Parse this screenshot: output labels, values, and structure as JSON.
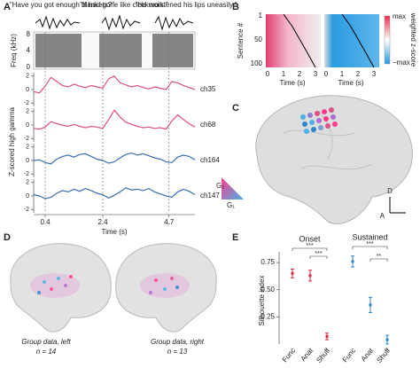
{
  "panels": {
    "A": {
      "letter": "A",
      "quotes": [
        "\"Have you got enough blankets?\"",
        "\"If had gone like clockwork.\"",
        "\"He moistened his lips uneasily.\""
      ],
      "freq_label": "Freq (kHz)",
      "freq_ticks": [
        "0",
        "4",
        "8"
      ]
    },
    "B": {
      "letter": "B",
      "ylabel": "Sentence #",
      "yticks": [
        "1",
        "50",
        "100"
      ],
      "xticks": [
        "0",
        "1",
        "2",
        "3"
      ],
      "xlabel": "Time (s)",
      "cbar_max": "max",
      "cbar_min": "−max",
      "cbar_label": "weighted z-score"
    },
    "C": {
      "letter": "C",
      "g1": "G₁",
      "g2": "G₂",
      "dorsal": "D",
      "anterior": "A"
    },
    "D": {
      "letter": "D",
      "left_caption": "Group data, left",
      "left_n": "n = 14",
      "right_caption": "Group data, right",
      "right_n": "n = 13"
    },
    "E": {
      "letter": "E"
    }
  },
  "chart_data": [
    {
      "type": "line",
      "label": "ch35",
      "color": "#e0508a",
      "xlim": [
        0,
        5.6
      ],
      "ylim": [
        -2.5,
        2.5
      ],
      "yticks": [
        -2,
        0,
        2
      ],
      "x": [
        0,
        0.2,
        0.4,
        0.6,
        0.8,
        1,
        1.2,
        1.4,
        1.6,
        1.8,
        2,
        2.2,
        2.4,
        2.6,
        2.8,
        3,
        3.2,
        3.4,
        3.6,
        3.8,
        4,
        4.2,
        4.4,
        4.6,
        4.8,
        5,
        5.2,
        5.4,
        5.6
      ],
      "values": [
        -0.3,
        -0.5,
        0.5,
        1.8,
        1.2,
        0.6,
        0.4,
        0.8,
        0.5,
        0.3,
        0.6,
        0.4,
        0.2,
        1.6,
        2.0,
        1.0,
        0.7,
        0.4,
        0.6,
        0.3,
        0.1,
        0.4,
        0.2,
        0.0,
        1.2,
        1.0,
        0.6,
        0.3,
        0.0
      ]
    },
    {
      "type": "line",
      "label": "ch68",
      "color": "#e0508a",
      "ylabel": "Z-scored high gamma",
      "xlim": [
        0,
        5.6
      ],
      "ylim": [
        -2.5,
        2.5
      ],
      "yticks": [
        -2,
        0,
        2
      ],
      "x": [
        0,
        0.2,
        0.4,
        0.6,
        0.8,
        1,
        1.2,
        1.4,
        1.6,
        1.8,
        2,
        2.2,
        2.4,
        2.6,
        2.8,
        3,
        3.2,
        3.4,
        3.6,
        3.8,
        4,
        4.2,
        4.4,
        4.6,
        4.8,
        5,
        5.2,
        5.4,
        5.6
      ],
      "values": [
        -0.5,
        -0.6,
        -0.3,
        0.5,
        0.2,
        0.0,
        -0.2,
        0.1,
        -0.2,
        -0.4,
        -0.2,
        -0.3,
        -0.5,
        0.8,
        2.2,
        1.2,
        0.4,
        0.1,
        -0.2,
        -0.4,
        -0.3,
        -0.5,
        -0.4,
        -0.6,
        0.6,
        1.5,
        0.8,
        0.2,
        -0.3
      ]
    },
    {
      "type": "line",
      "label": "ch164",
      "color": "#3a6fb0",
      "xlim": [
        0,
        5.6
      ],
      "ylim": [
        -2.5,
        2.5
      ],
      "yticks": [
        -2,
        0,
        2
      ],
      "x": [
        0,
        0.2,
        0.4,
        0.6,
        0.8,
        1,
        1.2,
        1.4,
        1.6,
        1.8,
        2,
        2.2,
        2.4,
        2.6,
        2.8,
        3,
        3.2,
        3.4,
        3.6,
        3.8,
        4,
        4.2,
        4.4,
        4.6,
        4.8,
        5,
        5.2,
        5.4,
        5.6
      ],
      "values": [
        0.0,
        0.1,
        -0.3,
        -0.5,
        0.2,
        0.6,
        0.8,
        0.5,
        0.9,
        1.0,
        0.6,
        0.2,
        0.0,
        -0.4,
        -0.2,
        0.4,
        0.9,
        1.1,
        0.8,
        1.0,
        0.7,
        0.4,
        0.2,
        -0.2,
        -0.3,
        0.5,
        0.8,
        0.6,
        0.1
      ]
    },
    {
      "type": "line",
      "label": "ch147",
      "color": "#3a6fb0",
      "xlabel": "Time (s)",
      "xlim": [
        0,
        5.6
      ],
      "ylim": [
        -2.5,
        2.5
      ],
      "yticks": [
        -2,
        0,
        2
      ],
      "xticks": [
        0.4,
        2.4,
        4.7
      ],
      "x": [
        0,
        0.2,
        0.4,
        0.6,
        0.8,
        1,
        1.2,
        1.4,
        1.6,
        1.8,
        2,
        2.2,
        2.4,
        2.6,
        2.8,
        3,
        3.2,
        3.4,
        3.6,
        3.8,
        4,
        4.2,
        4.4,
        4.6,
        4.8,
        5,
        5.2,
        5.4,
        5.6
      ],
      "values": [
        0.2,
        0.0,
        -0.4,
        -0.2,
        0.4,
        0.8,
        0.6,
        1.0,
        0.7,
        1.1,
        0.8,
        0.4,
        0.2,
        -0.3,
        0.1,
        0.6,
        1.2,
        0.9,
        1.0,
        0.8,
        1.1,
        0.6,
        0.3,
        0.0,
        -0.2,
        0.6,
        1.0,
        0.7,
        0.2
      ]
    },
    {
      "type": "errorbar",
      "ylabel": "Silhouette index",
      "ylim": [
        0,
        0.8
      ],
      "yticks": [
        {
          "value": 0.25,
          "label": "0.25"
        },
        {
          "value": 0.5,
          "label": "0.50"
        },
        {
          "value": 0.75,
          "label": "0.75"
        }
      ],
      "categories": [
        "Func",
        "Anat",
        "Shuff"
      ],
      "series": [
        {
          "name": "Onset",
          "color": "#d7263d",
          "values": [
            0.65,
            0.63,
            0.07
          ],
          "errors": [
            0.04,
            0.05,
            0.03
          ]
        },
        {
          "name": "Sustained",
          "color": "#2e86c8",
          "values": [
            0.76,
            0.36,
            0.04
          ],
          "errors": [
            0.05,
            0.07,
            0.04
          ]
        }
      ],
      "significance": [
        "***",
        "***",
        "***",
        "**"
      ]
    }
  ]
}
